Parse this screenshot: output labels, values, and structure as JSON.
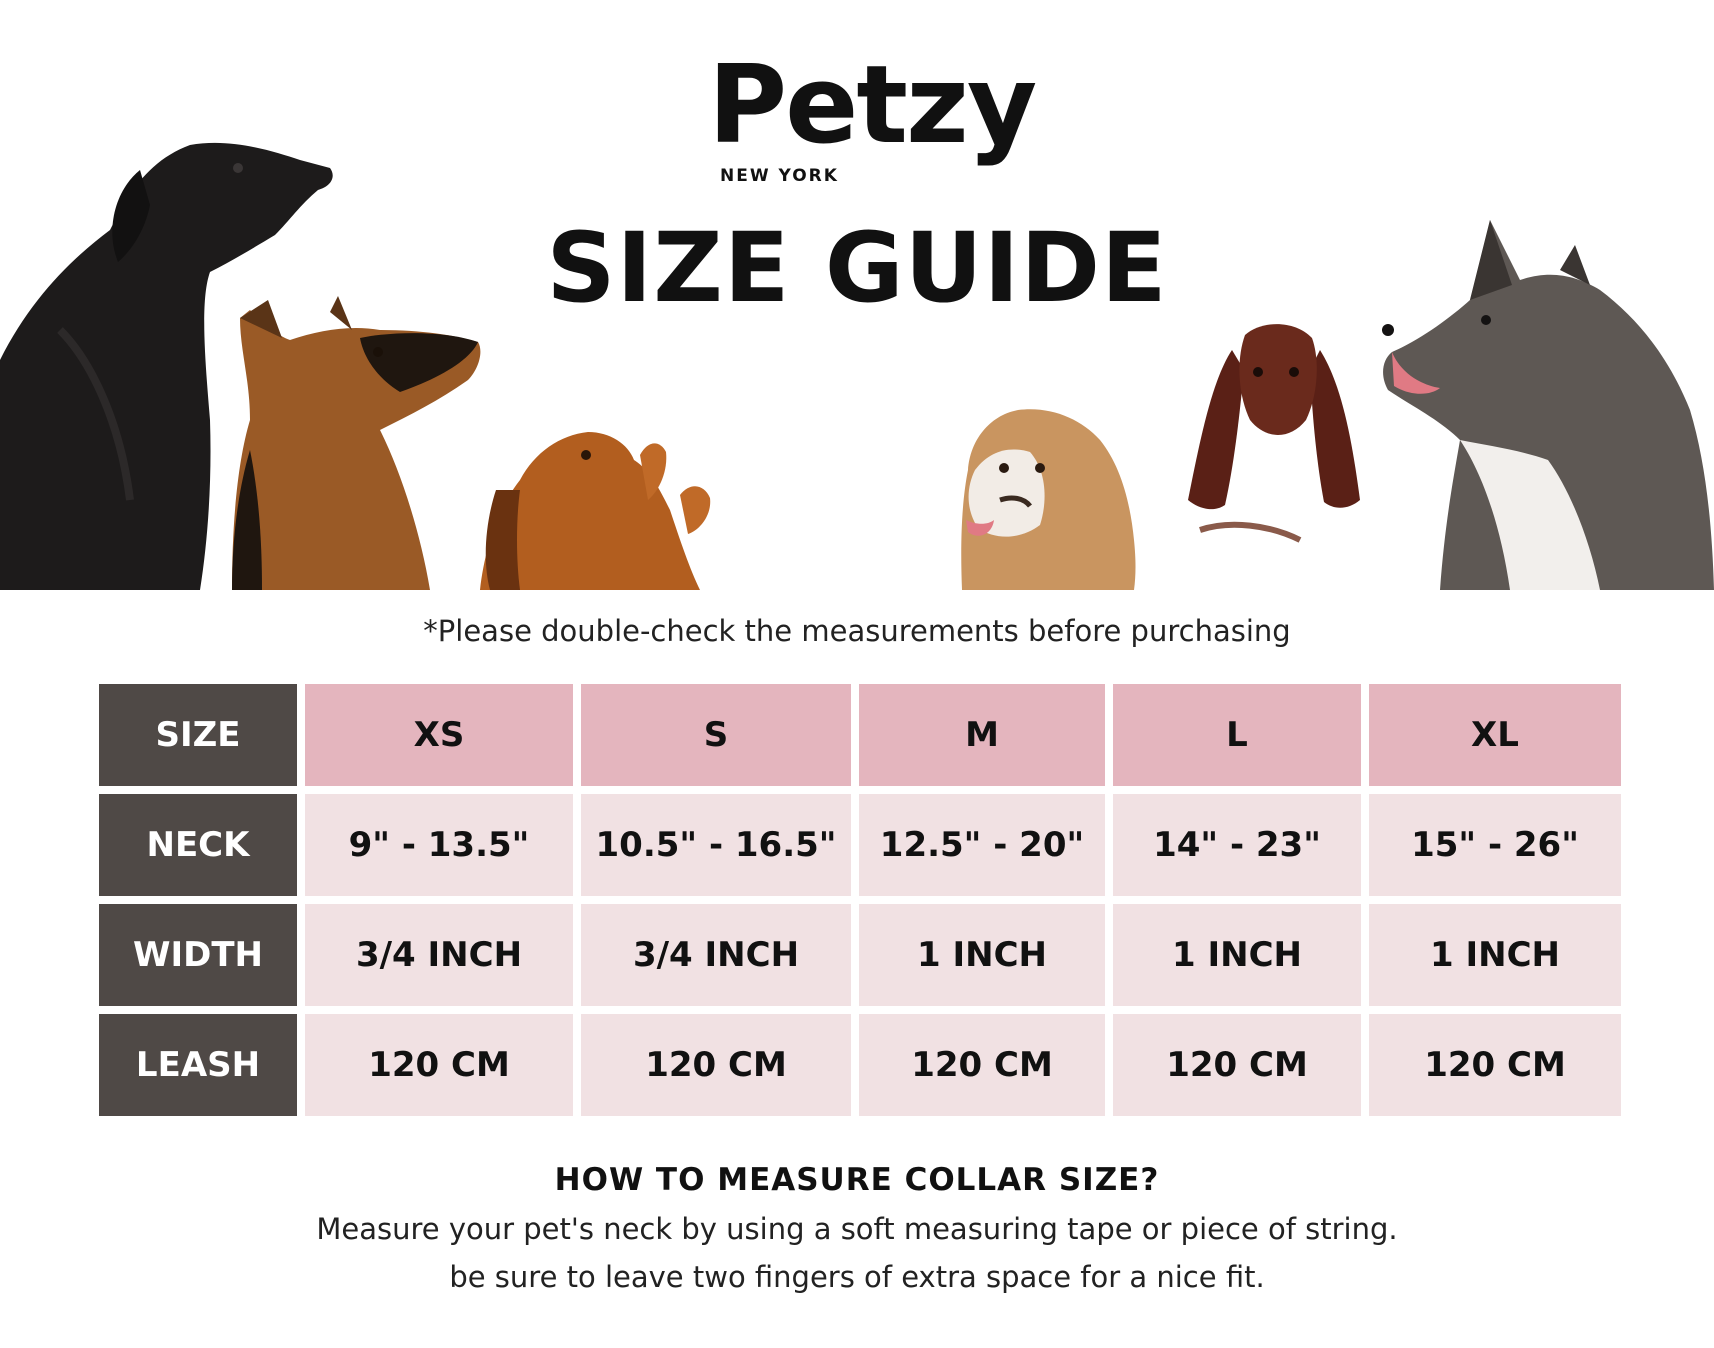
{
  "brand": {
    "name": "Petzy",
    "sub": "NEW YORK"
  },
  "title": "SIZE GUIDE",
  "note": "*Please double-check the measurements before purchasing",
  "dogs": [
    "great-dane",
    "german-shepherd",
    "dachshund",
    "bulldog",
    "spaniel",
    "akita"
  ],
  "colors": {
    "row_header": "#4f4946",
    "col_header": "#e4b5be",
    "cell": "#f1e1e3"
  },
  "table": {
    "header_label": "SIZE",
    "sizes": [
      "XS",
      "S",
      "M",
      "L",
      "XL"
    ],
    "rows": [
      {
        "label": "NECK",
        "values": [
          "9\" - 13.5\"",
          "10.5\" - 16.5\"",
          "12.5\" - 20\"",
          "14\" - 23\"",
          "15\" - 26\""
        ]
      },
      {
        "label": "WIDTH",
        "values": [
          "3/4 INCH",
          "3/4 INCH",
          "1 INCH",
          "1 INCH",
          "1 INCH"
        ]
      },
      {
        "label": "LEASH",
        "values": [
          "120 CM",
          "120 CM",
          "120 CM",
          "120 CM",
          "120 CM"
        ]
      }
    ]
  },
  "measure": {
    "title": "HOW TO MEASURE COLLAR SIZE?",
    "lines": [
      "Measure your pet's neck by using a soft measuring tape or piece of string.",
      "be sure to leave two fingers of extra space for a nice fit."
    ]
  }
}
